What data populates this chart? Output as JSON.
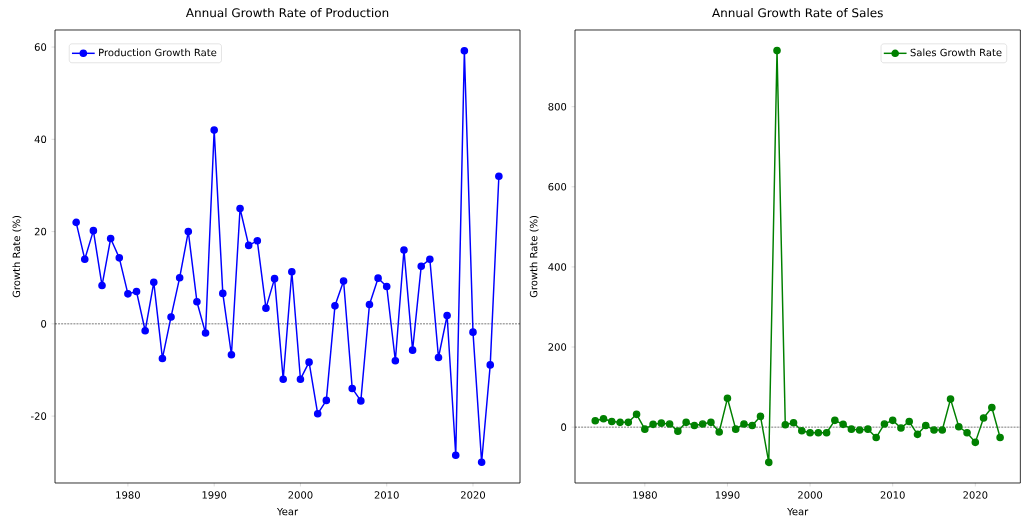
{
  "chart_data": [
    {
      "type": "line",
      "title": "Annual Growth Rate of Production",
      "xlabel": "Year",
      "ylabel": "Growth Rate (%)",
      "x": [
        1974,
        1975,
        1976,
        1977,
        1978,
        1979,
        1980,
        1981,
        1982,
        1983,
        1984,
        1985,
        1986,
        1987,
        1988,
        1989,
        1990,
        1991,
        1992,
        1993,
        1994,
        1995,
        1996,
        1997,
        1998,
        1999,
        2000,
        2001,
        2002,
        2003,
        2004,
        2005,
        2006,
        2007,
        2008,
        2009,
        2010,
        2011,
        2012,
        2013,
        2014,
        2015,
        2016,
        2017,
        2018,
        2019,
        2020,
        2021,
        2022,
        2023
      ],
      "series": [
        {
          "name": "Production Growth Rate",
          "color": "#0000ff",
          "values": [
            22,
            14,
            20.2,
            8.3,
            18.5,
            14.3,
            6.5,
            7,
            -1.5,
            9,
            -7.5,
            1.5,
            10,
            20,
            4.8,
            -2,
            42,
            6.6,
            -6.7,
            25,
            17,
            18,
            3.4,
            9.8,
            -12,
            11.3,
            -12,
            -8.3,
            -19.5,
            -16.6,
            3.9,
            9.3,
            -14,
            -16.7,
            4.2,
            9.9,
            8.1,
            -8,
            16,
            -5.7,
            12.5,
            14,
            -7.3,
            1.8,
            -28.5,
            59.2,
            -1.8,
            -30,
            -8.9,
            32
          ]
        }
      ],
      "xlim": [
        1971.55,
        2025.45
      ],
      "ylim": [
        -34.5,
        63.7
      ],
      "xticks": [
        1980,
        1990,
        2000,
        2010,
        2020
      ],
      "yticks": [
        -20,
        0,
        20,
        40,
        60
      ],
      "marker": "circle",
      "legend": "top left",
      "ref_lines": [
        {
          "axis": "y",
          "value": 0,
          "color": "#000000",
          "line_style": "dashed"
        }
      ]
    },
    {
      "type": "line",
      "title": "Annual Growth Rate of Sales",
      "xlabel": "Year",
      "ylabel": "Growth Rate (%)",
      "x": [
        1974,
        1975,
        1976,
        1977,
        1978,
        1979,
        1980,
        1981,
        1982,
        1983,
        1984,
        1985,
        1986,
        1987,
        1988,
        1989,
        1990,
        1991,
        1992,
        1993,
        1994,
        1995,
        1996,
        1997,
        1998,
        1999,
        2000,
        2001,
        2002,
        2003,
        2004,
        2005,
        2006,
        2007,
        2008,
        2009,
        2010,
        2011,
        2012,
        2013,
        2014,
        2015,
        2016,
        2017,
        2018,
        2019,
        2020,
        2021,
        2022,
        2023
      ],
      "series": [
        {
          "name": "Sales Growth Rate",
          "color": "#008000",
          "values": [
            16,
            21,
            14,
            12,
            12,
            32,
            -5,
            7,
            10,
            8,
            -10,
            12,
            4,
            8,
            12,
            -12,
            72,
            -5,
            8,
            4,
            27,
            -88,
            940,
            6,
            11,
            -9,
            -14,
            -14,
            -14,
            17,
            7,
            -5,
            -7,
            -5,
            -26,
            8,
            17,
            -2,
            14,
            -18,
            4,
            -7,
            -7,
            70,
            1,
            -14,
            -38,
            23,
            49,
            -26
          ]
        }
      ],
      "xlim": [
        1971.55,
        2025.45
      ],
      "ylim": [
        -139.4,
        991.4
      ],
      "xticks": [
        1980,
        1990,
        2000,
        2010,
        2020
      ],
      "yticks": [
        0,
        200,
        400,
        600,
        800
      ],
      "marker": "circle",
      "legend": "top right",
      "ref_lines": [
        {
          "axis": "y",
          "value": 0,
          "color": "#000000",
          "line_style": "dashed"
        }
      ]
    }
  ]
}
